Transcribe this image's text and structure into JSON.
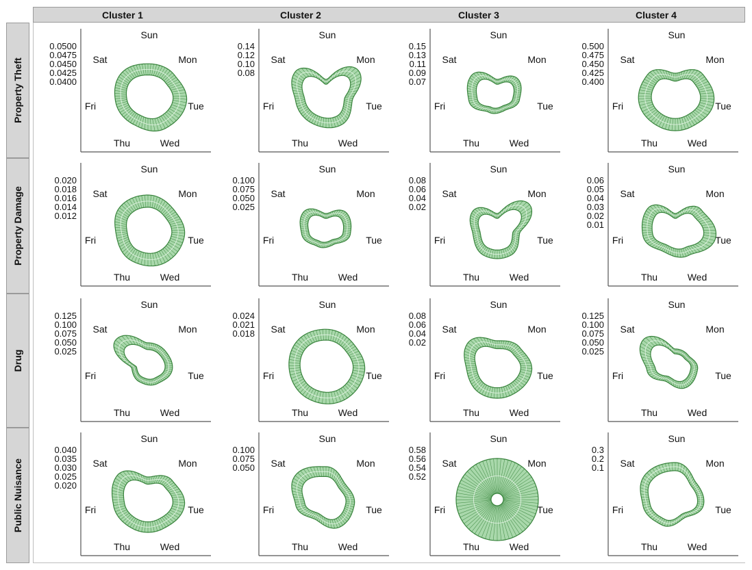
{
  "columns": [
    "Cluster 1",
    "Cluster 2",
    "Cluster 3",
    "Cluster 4"
  ],
  "rows": [
    "Property Theft",
    "Property Damage",
    "Drug",
    "Public Nuisance"
  ],
  "colors": {
    "fill": "#2e7d32",
    "fill_light": "#a5d6a7",
    "frame": "#555555",
    "header_bg": "#d6d6d6"
  },
  "chart_data": {
    "type": "radar",
    "axes": [
      "Sun",
      "Mon",
      "Tue",
      "Wed",
      "Thu",
      "Fri",
      "Sat"
    ],
    "panels": [
      {
        "row": "Property Theft",
        "col": "Cluster 1",
        "ticks": [
          "0.0500",
          "0.0475",
          "0.0450",
          "0.0425",
          "0.0400"
        ],
        "shape": [
          0.78,
          0.82,
          0.95,
          0.9,
          0.78,
          0.8,
          0.85
        ],
        "width": 0.35
      },
      {
        "row": "Property Theft",
        "col": "Cluster 2",
        "ticks": [
          "0.14",
          "0.12",
          "0.10",
          "0.08"
        ],
        "shape": [
          0.4,
          1.0,
          0.65,
          0.8,
          0.75,
          0.75,
          0.95
        ],
        "width": 0.3
      },
      {
        "row": "Property Theft",
        "col": "Cluster 3",
        "ticks": [
          "0.15",
          "0.13",
          "0.11",
          "0.09",
          "0.07"
        ],
        "shape": [
          0.4,
          0.65,
          0.55,
          0.4,
          0.45,
          0.7,
          0.8
        ],
        "width": 0.3
      },
      {
        "row": "Property Theft",
        "col": "Cluster 4",
        "ticks": [
          "0.500",
          "0.475",
          "0.450",
          "0.425",
          "0.400"
        ],
        "shape": [
          0.55,
          0.85,
          0.95,
          0.85,
          0.85,
          0.9,
          0.85
        ],
        "width": 0.35
      },
      {
        "row": "Property Damage",
        "col": "Cluster 1",
        "ticks": [
          "0.020",
          "0.018",
          "0.016",
          "0.014",
          "0.012"
        ],
        "shape": [
          0.85,
          0.8,
          0.9,
          0.9,
          0.85,
          0.78,
          0.88
        ],
        "width": 0.35
      },
      {
        "row": "Property Damage",
        "col": "Cluster 2",
        "ticks": [
          "0.100",
          "0.075",
          "0.050",
          "0.025"
        ],
        "shape": [
          0.4,
          0.65,
          0.6,
          0.4,
          0.45,
          0.6,
          0.7
        ],
        "width": 0.3
      },
      {
        "row": "Property Damage",
        "col": "Cluster 3",
        "ticks": [
          "0.08",
          "0.06",
          "0.04",
          "0.02"
        ],
        "shape": [
          0.4,
          1.0,
          0.55,
          0.7,
          0.7,
          0.6,
          0.75
        ],
        "width": 0.3
      },
      {
        "row": "Property Damage",
        "col": "Cluster 4",
        "ticks": [
          "0.06",
          "0.05",
          "0.04",
          "0.03",
          "0.02",
          "0.01"
        ],
        "shape": [
          0.4,
          0.8,
          1.0,
          0.7,
          0.6,
          0.8,
          0.85
        ],
        "width": 0.3
      },
      {
        "row": "Drug",
        "col": "Cluster 1",
        "ticks": [
          "0.125",
          "0.100",
          "0.075",
          "0.050",
          "0.025"
        ],
        "shape": [
          0.55,
          0.55,
          0.6,
          0.5,
          0.45,
          0.4,
          1.0
        ],
        "width": 0.3
      },
      {
        "row": "Drug",
        "col": "Cluster 2",
        "ticks": [
          "0.024",
          "0.021",
          "0.018"
        ],
        "shape": [
          0.88,
          0.85,
          0.95,
          0.95,
          0.92,
          0.9,
          0.92
        ],
        "width": 0.3
      },
      {
        "row": "Drug",
        "col": "Cluster 3",
        "ticks": [
          "0.08",
          "0.06",
          "0.04",
          "0.02"
        ],
        "shape": [
          0.6,
          0.7,
          0.85,
          0.8,
          0.8,
          0.75,
          0.9
        ],
        "width": 0.32
      },
      {
        "row": "Drug",
        "col": "Cluster 4",
        "ticks": [
          "0.125",
          "0.100",
          "0.075",
          "0.050",
          "0.025"
        ],
        "shape": [
          0.4,
          0.4,
          0.55,
          0.6,
          0.45,
          0.7,
          1.0
        ],
        "width": 0.3
      },
      {
        "row": "Public Nuisance",
        "col": "Cluster 1",
        "ticks": [
          "0.040",
          "0.035",
          "0.030",
          "0.025",
          "0.020"
        ],
        "shape": [
          0.55,
          0.75,
          0.9,
          0.8,
          0.8,
          0.85,
          0.95
        ],
        "width": 0.32
      },
      {
        "row": "Public Nuisance",
        "col": "Cluster 2",
        "ticks": [
          "0.100",
          "0.075",
          "0.050"
        ],
        "shape": [
          0.8,
          0.6,
          0.7,
          0.75,
          0.55,
          0.75,
          0.95
        ],
        "width": 0.3
      },
      {
        "row": "Public Nuisance",
        "col": "Cluster 3",
        "ticks": [
          "0.58",
          "0.56",
          "0.54",
          "0.52"
        ],
        "shape": [
          1.0,
          1.0,
          1.0,
          1.0,
          1.0,
          1.0,
          1.0
        ],
        "width": 0.85
      },
      {
        "row": "Public Nuisance",
        "col": "Cluster 4",
        "ticks": [
          "0.3",
          "0.2",
          "0.1"
        ],
        "shape": [
          0.9,
          0.65,
          0.7,
          0.5,
          0.7,
          0.8,
          0.95
        ],
        "width": 0.22
      }
    ]
  }
}
